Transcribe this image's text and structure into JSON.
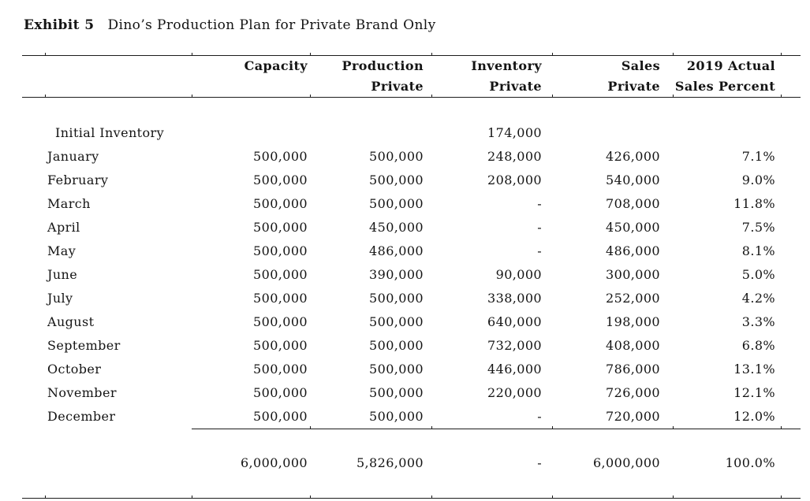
{
  "exhibit": {
    "label": "Exhibit 5",
    "title": "Dino’s Production Plan for Private Brand Only"
  },
  "table": {
    "headers": [
      {
        "line1": "Capacity",
        "line2": ""
      },
      {
        "line1": "Production",
        "line2": "Private"
      },
      {
        "line1": "Inventory",
        "line2": "Private"
      },
      {
        "line1": "Sales",
        "line2": "Private"
      },
      {
        "line1": "2019 Actual",
        "line2": "Sales Percent"
      }
    ],
    "rows": [
      {
        "label": "Initial Inventory",
        "indent": true,
        "capacity": "",
        "production": "",
        "inventory": "174,000",
        "sales": "",
        "percent": ""
      },
      {
        "label": "January",
        "indent": false,
        "capacity": "500,000",
        "production": "500,000",
        "inventory": "248,000",
        "sales": "426,000",
        "percent": "7.1%"
      },
      {
        "label": "February",
        "indent": false,
        "capacity": "500,000",
        "production": "500,000",
        "inventory": "208,000",
        "sales": "540,000",
        "percent": "9.0%"
      },
      {
        "label": "March",
        "indent": false,
        "capacity": "500,000",
        "production": "500,000",
        "inventory": "-",
        "sales": "708,000",
        "percent": "11.8%"
      },
      {
        "label": "April",
        "indent": false,
        "capacity": "500,000",
        "production": "450,000",
        "inventory": "-",
        "sales": "450,000",
        "percent": "7.5%"
      },
      {
        "label": "May",
        "indent": false,
        "capacity": "500,000",
        "production": "486,000",
        "inventory": "-",
        "sales": "486,000",
        "percent": "8.1%"
      },
      {
        "label": "June",
        "indent": false,
        "capacity": "500,000",
        "production": "390,000",
        "inventory": "90,000",
        "sales": "300,000",
        "percent": "5.0%"
      },
      {
        "label": "July",
        "indent": false,
        "capacity": "500,000",
        "production": "500,000",
        "inventory": "338,000",
        "sales": "252,000",
        "percent": "4.2%"
      },
      {
        "label": "August",
        "indent": false,
        "capacity": "500,000",
        "production": "500,000",
        "inventory": "640,000",
        "sales": "198,000",
        "percent": "3.3%"
      },
      {
        "label": "September",
        "indent": false,
        "capacity": "500,000",
        "production": "500,000",
        "inventory": "732,000",
        "sales": "408,000",
        "percent": "6.8%"
      },
      {
        "label": "October",
        "indent": false,
        "capacity": "500,000",
        "production": "500,000",
        "inventory": "446,000",
        "sales": "786,000",
        "percent": "13.1%"
      },
      {
        "label": "November",
        "indent": false,
        "capacity": "500,000",
        "production": "500,000",
        "inventory": "220,000",
        "sales": "726,000",
        "percent": "12.1%"
      },
      {
        "label": "December",
        "indent": false,
        "capacity": "500,000",
        "production": "500,000",
        "inventory": "-",
        "sales": "720,000",
        "percent": "12.0%"
      }
    ],
    "totals": {
      "label": "",
      "capacity": "6,000,000",
      "production": "5,826,000",
      "inventory": "-",
      "sales": "6,000,000",
      "percent": "100.0%"
    }
  }
}
